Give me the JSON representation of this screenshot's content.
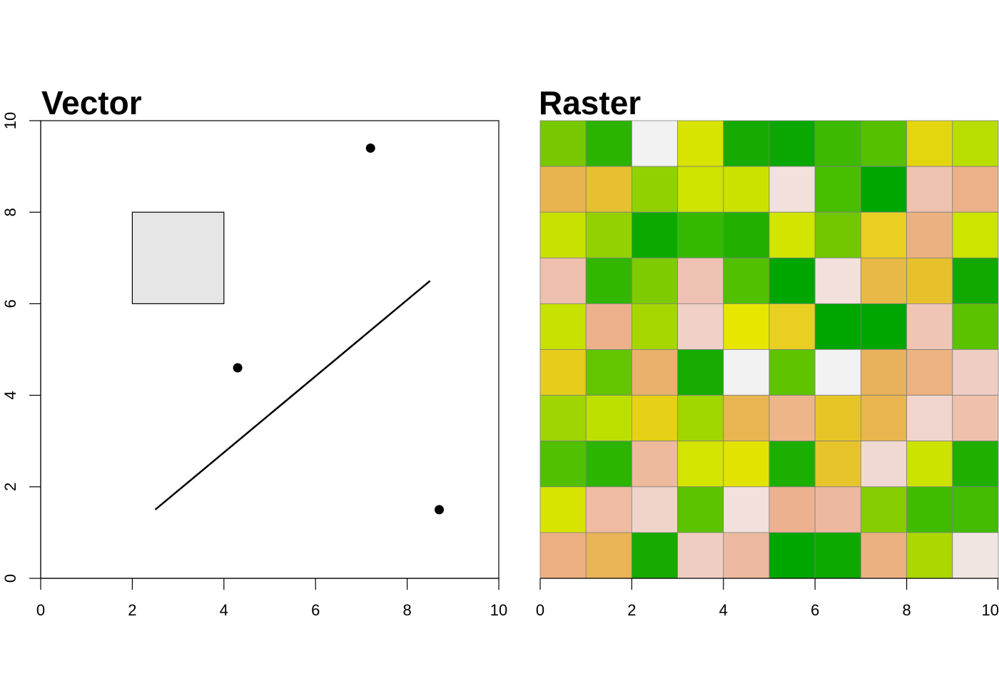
{
  "chart_data": [
    {
      "type": "scatter",
      "title": "Vector",
      "xlabel": "",
      "ylabel": "",
      "xlim": [
        0,
        10
      ],
      "ylim": [
        0,
        10
      ],
      "x_ticks": [
        0,
        2,
        4,
        6,
        8,
        10
      ],
      "y_ticks": [
        0,
        2,
        4,
        6,
        8,
        10
      ],
      "x_tick_labels": [
        "0",
        "2",
        "4",
        "6",
        "8",
        "10"
      ],
      "y_tick_labels": [
        "0",
        "2",
        "4",
        "6",
        "8",
        "10"
      ],
      "points": [
        {
          "x": 4.3,
          "y": 4.6
        },
        {
          "x": 7.2,
          "y": 9.4
        },
        {
          "x": 8.7,
          "y": 1.5
        }
      ],
      "line": [
        {
          "x": 2.5,
          "y": 1.5
        },
        {
          "x": 8.5,
          "y": 6.5
        }
      ],
      "polygon": {
        "xmin": 2,
        "xmax": 4,
        "ymin": 6,
        "ymax": 8,
        "fill": "#e6e6e6"
      },
      "grid": false
    },
    {
      "type": "heatmap",
      "title": "Raster",
      "xlabel": "",
      "ylabel": "",
      "xlim": [
        0,
        10
      ],
      "ylim": [
        0,
        10
      ],
      "x_ticks": [
        0,
        2,
        4,
        6,
        8,
        10
      ],
      "x_tick_labels": [
        "0",
        "2",
        "4",
        "6",
        "8",
        "10"
      ],
      "grid": false,
      "cells": [
        [
          "#77c800",
          "#2bb300",
          "#f2f2f2",
          "#d8e400",
          "#15ab00",
          "#0aa700",
          "#3dba00",
          "#55c000",
          "#e4d60e",
          "#b8de00"
        ],
        [
          "#e9b350",
          "#e6c02e",
          "#92d100",
          "#cee300",
          "#cbe200",
          "#f1e0dc",
          "#48be00",
          "#00a600",
          "#efc2b0",
          "#ecb189"
        ],
        [
          "#c8e200",
          "#93d100",
          "#0ea900",
          "#35b800",
          "#22b000",
          "#d2e400",
          "#72c700",
          "#e9d023",
          "#ecb181",
          "#cde300"
        ],
        [
          "#efc0ad",
          "#32b700",
          "#7dcb00",
          "#efc1b2",
          "#50c000",
          "#00a600",
          "#f1e0dc",
          "#e8b948",
          "#e7c12c",
          "#11a900"
        ],
        [
          "#c7e200",
          "#ecb08a",
          "#a6d600",
          "#f0d0c7",
          "#e6e600",
          "#e9cf22",
          "#00a600",
          "#00a600",
          "#efc5b6",
          "#5bc200"
        ],
        [
          "#e6cd1c",
          "#63c400",
          "#e9b16c",
          "#17ac00",
          "#f2f2f2",
          "#5fc300",
          "#f2f2f2",
          "#e9b15b",
          "#ecb27f",
          "#f0cdc3"
        ],
        [
          "#9fd500",
          "#bee000",
          "#e6d116",
          "#a2d600",
          "#e9b452",
          "#ecb58a",
          "#e7c526",
          "#e9b54e",
          "#f0d5ce",
          "#efc1ad"
        ],
        [
          "#50c000",
          "#2bb400",
          "#edba9d",
          "#d3e500",
          "#e2e400",
          "#1cae00",
          "#e7c42c",
          "#f1d9d3",
          "#cce300",
          "#1eaf00"
        ],
        [
          "#d8e400",
          "#efbba3",
          "#f0d4cb",
          "#5cc300",
          "#f1e0dc",
          "#ecb28f",
          "#edb8a0",
          "#86cd00",
          "#3fbc00",
          "#41bc00"
        ],
        [
          "#ecb083",
          "#e9b356",
          "#16ab00",
          "#f0cdc2",
          "#edb9a0",
          "#00a600",
          "#0da800",
          "#ecb180",
          "#acd800",
          "#f1e5e2"
        ]
      ]
    }
  ]
}
